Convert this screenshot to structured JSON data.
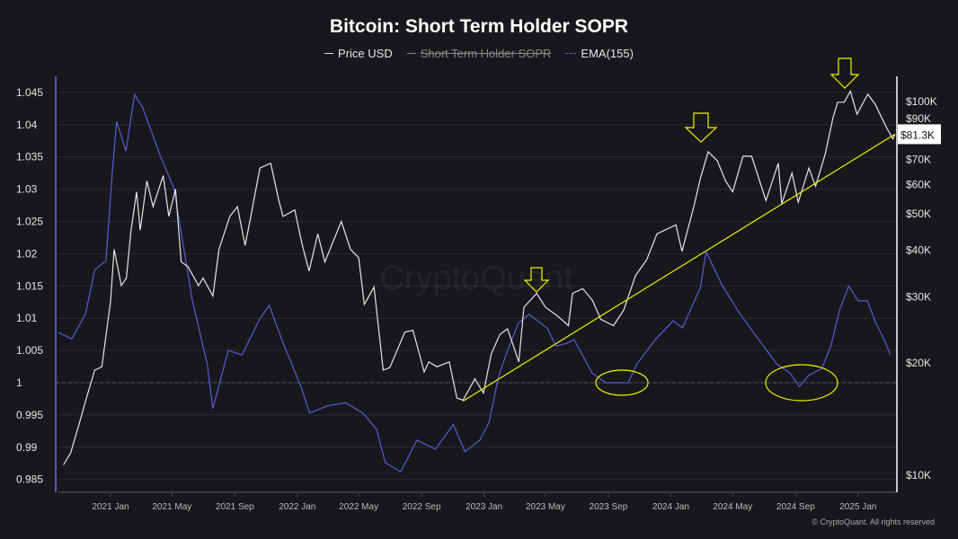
{
  "chart_data": {
    "type": "line",
    "title": "Bitcoin: Short Term Holder SOPR",
    "legend": [
      {
        "label": "Price USD",
        "color": "#e6e6e6",
        "enabled": true
      },
      {
        "label": "Short Term Holder SOPR",
        "color": "#888888",
        "enabled": false
      },
      {
        "label": "EMA(155)",
        "color": "#5b5bd6",
        "enabled": true
      }
    ],
    "legend_position": "top",
    "x_ticks": [
      "2021 Jan",
      "2021 May",
      "2021 Sep",
      "2022 Jan",
      "2022 May",
      "2022 Sep",
      "2023 Jan",
      "2023 May",
      "2023 Sep",
      "2024 Jan",
      "2024 May",
      "2024 Sep",
      "2025 Jan"
    ],
    "x_tick_dates": [
      "2021-01-01",
      "2021-05-01",
      "2021-09-01",
      "2022-01-01",
      "2022-05-01",
      "2022-09-01",
      "2023-01-01",
      "2023-05-01",
      "2023-09-01",
      "2024-01-01",
      "2024-05-01",
      "2024-09-01",
      "2025-01-01"
    ],
    "y_left": {
      "ticks": [
        "1.045",
        "1.04",
        "1.035",
        "1.03",
        "1.025",
        "1.02",
        "1.015",
        "1.01",
        "1.005",
        "1",
        "0.995",
        "0.99",
        "0.985"
      ],
      "range": [
        0.9845,
        1.0475
      ],
      "reference_line": 1,
      "grid": true
    },
    "y_right": {
      "scale": "log",
      "ticks": [
        "$100K",
        "$90K",
        "$70K",
        "$60K",
        "$50K",
        "$40K",
        "$30K",
        "$20K",
        "$10K"
      ],
      "tick_values": [
        100000,
        90000,
        70000,
        60000,
        50000,
        40000,
        30000,
        20000,
        10000
      ],
      "current_label": "$81.3K"
    },
    "series": [
      {
        "name": "Price USD",
        "axis": "right",
        "color": "#e6e6e6",
        "points": [
          [
            "2020-10-01",
            10600
          ],
          [
            "2020-10-15",
            11400
          ],
          [
            "2020-11-01",
            13700
          ],
          [
            "2020-11-15",
            16000
          ],
          [
            "2020-12-01",
            19000
          ],
          [
            "2020-12-15",
            19400
          ],
          [
            "2021-01-01",
            29000
          ],
          [
            "2021-01-08",
            40000
          ],
          [
            "2021-01-22",
            32000
          ],
          [
            "2021-02-01",
            33500
          ],
          [
            "2021-02-10",
            45000
          ],
          [
            "2021-02-21",
            57000
          ],
          [
            "2021-02-28",
            45000
          ],
          [
            "2021-03-13",
            61000
          ],
          [
            "2021-03-25",
            52000
          ],
          [
            "2021-04-14",
            63000
          ],
          [
            "2021-04-25",
            49000
          ],
          [
            "2021-05-08",
            58000
          ],
          [
            "2021-05-19",
            37000
          ],
          [
            "2021-06-01",
            36000
          ],
          [
            "2021-06-22",
            32000
          ],
          [
            "2021-07-01",
            33500
          ],
          [
            "2021-07-20",
            30000
          ],
          [
            "2021-08-01",
            40000
          ],
          [
            "2021-08-22",
            49000
          ],
          [
            "2021-09-06",
            52000
          ],
          [
            "2021-09-21",
            41000
          ],
          [
            "2021-10-01",
            48000
          ],
          [
            "2021-10-20",
            66000
          ],
          [
            "2021-11-10",
            68000
          ],
          [
            "2021-11-26",
            54000
          ],
          [
            "2021-12-04",
            49000
          ],
          [
            "2021-12-27",
            51000
          ],
          [
            "2022-01-10",
            41500
          ],
          [
            "2022-01-24",
            35000
          ],
          [
            "2022-02-10",
            44000
          ],
          [
            "2022-02-24",
            37000
          ],
          [
            "2022-03-28",
            47500
          ],
          [
            "2022-04-15",
            40000
          ],
          [
            "2022-05-01",
            38000
          ],
          [
            "2022-05-12",
            28500
          ],
          [
            "2022-05-31",
            31700
          ],
          [
            "2022-06-18",
            19000
          ],
          [
            "2022-07-01",
            19300
          ],
          [
            "2022-07-30",
            24000
          ],
          [
            "2022-08-15",
            24300
          ],
          [
            "2022-09-06",
            18800
          ],
          [
            "2022-09-15",
            20000
          ],
          [
            "2022-10-01",
            19400
          ],
          [
            "2022-10-25",
            20000
          ],
          [
            "2022-11-09",
            16000
          ],
          [
            "2022-11-21",
            15800
          ],
          [
            "2022-12-14",
            18000
          ],
          [
            "2022-12-31",
            16500
          ],
          [
            "2023-01-15",
            21000
          ],
          [
            "2023-02-01",
            23700
          ],
          [
            "2023-02-16",
            24500
          ],
          [
            "2023-03-10",
            20000
          ],
          [
            "2023-03-20",
            28000
          ],
          [
            "2023-04-14",
            30500
          ],
          [
            "2023-05-01",
            28000
          ],
          [
            "2023-05-25",
            26500
          ],
          [
            "2023-06-15",
            25000
          ],
          [
            "2023-06-23",
            30500
          ],
          [
            "2023-07-13",
            31400
          ],
          [
            "2023-08-01",
            29200
          ],
          [
            "2023-08-17",
            26000
          ],
          [
            "2023-09-11",
            25000
          ],
          [
            "2023-10-01",
            27500
          ],
          [
            "2023-10-24",
            34000
          ],
          [
            "2023-11-15",
            37500
          ],
          [
            "2023-12-05",
            44000
          ],
          [
            "2024-01-11",
            46500
          ],
          [
            "2024-01-23",
            39500
          ],
          [
            "2024-02-15",
            52000
          ],
          [
            "2024-02-28",
            62000
          ],
          [
            "2024-03-14",
            73000
          ],
          [
            "2024-04-01",
            69000
          ],
          [
            "2024-04-17",
            61000
          ],
          [
            "2024-05-01",
            57000
          ],
          [
            "2024-05-21",
            71000
          ],
          [
            "2024-06-07",
            71000
          ],
          [
            "2024-07-05",
            54000
          ],
          [
            "2024-07-29",
            68000
          ],
          [
            "2024-08-05",
            53000
          ],
          [
            "2024-08-25",
            64000
          ],
          [
            "2024-09-06",
            53500
          ],
          [
            "2024-09-27",
            66000
          ],
          [
            "2024-10-10",
            59000
          ],
          [
            "2024-10-29",
            72000
          ],
          [
            "2024-11-13",
            90000
          ],
          [
            "2024-11-22",
            99000
          ],
          [
            "2024-12-05",
            99000
          ],
          [
            "2024-12-17",
            106000
          ],
          [
            "2024-12-30",
            92000
          ],
          [
            "2025-01-20",
            104000
          ],
          [
            "2025-02-03",
            98000
          ],
          [
            "2025-02-27",
            84000
          ],
          [
            "2025-03-10",
            79000
          ],
          [
            "2025-03-14",
            81300
          ]
        ]
      },
      {
        "name": "EMA(155)",
        "axis": "left",
        "color": "#5b5bd6",
        "points": [
          [
            "2020-09-21",
            1.0078
          ],
          [
            "2020-10-17",
            1.0068
          ],
          [
            "2020-11-13",
            1.0106
          ],
          [
            "2020-12-01",
            1.0175
          ],
          [
            "2020-12-23",
            1.0189
          ],
          [
            "2021-01-04",
            1.0322
          ],
          [
            "2021-01-13",
            1.0405
          ],
          [
            "2021-01-31",
            1.0359
          ],
          [
            "2021-02-17",
            1.0447
          ],
          [
            "2021-03-05",
            1.0426
          ],
          [
            "2021-04-09",
            1.035
          ],
          [
            "2021-05-05",
            1.0301
          ],
          [
            "2021-06-10",
            1.0127
          ],
          [
            "2021-07-09",
            1.0029
          ],
          [
            "2021-07-20",
            0.996
          ],
          [
            "2021-08-19",
            1.005
          ],
          [
            "2021-09-15",
            1.0043
          ],
          [
            "2021-10-20",
            1.0099
          ],
          [
            "2021-11-07",
            1.012
          ],
          [
            "2021-12-03",
            1.0064
          ],
          [
            "2022-01-08",
            0.9994
          ],
          [
            "2022-01-25",
            0.9953
          ],
          [
            "2022-03-01",
            0.9964
          ],
          [
            "2022-04-05",
            0.9969
          ],
          [
            "2022-05-09",
            0.9953
          ],
          [
            "2022-06-05",
            0.9928
          ],
          [
            "2022-06-22",
            0.9876
          ],
          [
            "2022-07-22",
            0.9862
          ],
          [
            "2022-08-23",
            0.9911
          ],
          [
            "2022-09-28",
            0.9897
          ],
          [
            "2022-11-02",
            0.9935
          ],
          [
            "2022-11-25",
            0.9893
          ],
          [
            "2022-12-24",
            0.9911
          ],
          [
            "2023-01-11",
            0.9939
          ],
          [
            "2023-01-29",
            1.0008
          ],
          [
            "2023-02-16",
            1.005
          ],
          [
            "2023-03-09",
            1.0092
          ],
          [
            "2023-03-30",
            1.0106
          ],
          [
            "2023-05-04",
            1.0085
          ],
          [
            "2023-05-22",
            1.0057
          ],
          [
            "2023-06-12",
            1.0061
          ],
          [
            "2023-06-26",
            1.0067
          ],
          [
            "2023-07-31",
            1.0015
          ],
          [
            "2023-08-27",
            1.0
          ],
          [
            "2023-10-10",
            1.0
          ],
          [
            "2023-10-27",
            1.0029
          ],
          [
            "2023-12-02",
            1.0067
          ],
          [
            "2024-01-06",
            1.0096
          ],
          [
            "2024-01-24",
            1.0085
          ],
          [
            "2024-02-28",
            1.0148
          ],
          [
            "2024-03-10",
            1.0203
          ],
          [
            "2024-04-11",
            1.015
          ],
          [
            "2024-05-16",
            1.0106
          ],
          [
            "2024-06-17",
            1.0071
          ],
          [
            "2024-07-26",
            1.0029
          ],
          [
            "2024-08-21",
            1.0015
          ],
          [
            "2024-09-08",
            0.9994
          ],
          [
            "2024-09-26",
            1.0011
          ],
          [
            "2024-10-22",
            1.0022
          ],
          [
            "2024-11-09",
            1.0057
          ],
          [
            "2024-11-26",
            1.0113
          ],
          [
            "2024-12-14",
            1.015
          ],
          [
            "2025-01-01",
            1.0127
          ],
          [
            "2025-01-19",
            1.0127
          ],
          [
            "2025-02-05",
            1.0092
          ],
          [
            "2025-02-23",
            1.0064
          ],
          [
            "2025-03-05",
            1.0043
          ]
        ]
      }
    ],
    "annotations": {
      "trendline": {
        "from": [
          "2022-11-21",
          15700
        ],
        "to": [
          "2025-03-14",
          81300
        ],
        "color": "#f2f200"
      },
      "arrows_color": "#f2f200",
      "ellipses_color": "#f2f200"
    }
  },
  "watermark": "CryptoQuant",
  "copyright": "© CryptoQuant. All rights reserved"
}
